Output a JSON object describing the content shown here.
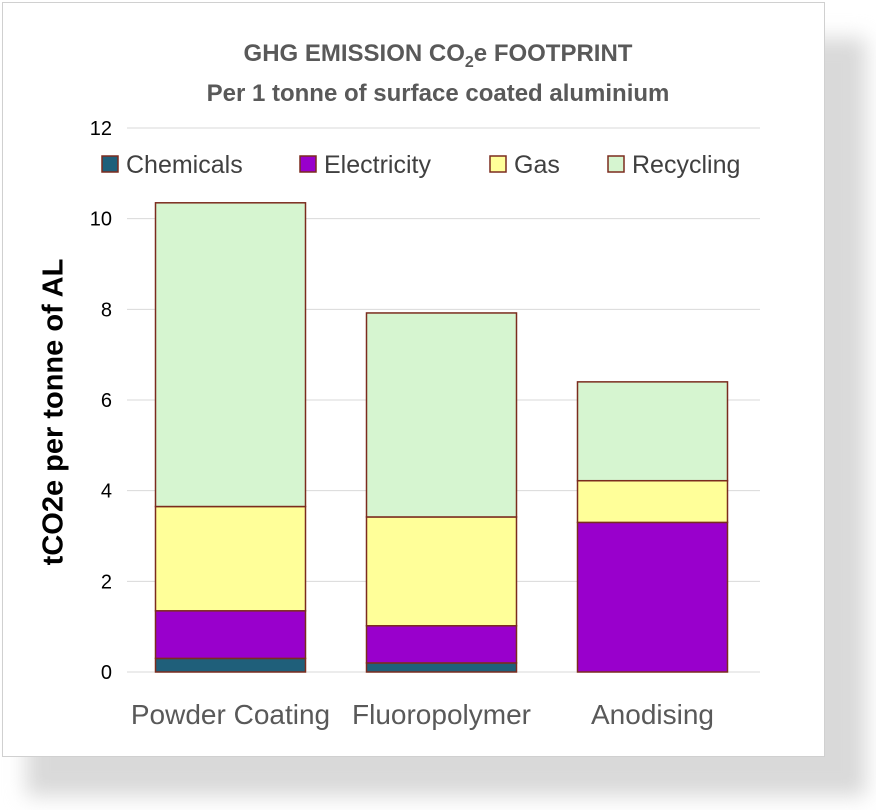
{
  "chart_data": {
    "type": "bar",
    "stacked": true,
    "title": "GHG EMISSION CO",
    "title_subscript": "2",
    "title_suffix": "e FOOTPRINT",
    "subtitle": "Per 1 tonne of surface coated aluminium",
    "ylabel": "tCO2e per tonne of AL",
    "xlabel": "",
    "ylim": [
      0,
      12
    ],
    "yticks": [
      0,
      2,
      4,
      6,
      8,
      10,
      12
    ],
    "grid": true,
    "legend_position": "top",
    "categories": [
      "Powder Coating",
      "Fluoropolymer",
      "Anodising"
    ],
    "series": [
      {
        "name": "Chemicals",
        "color": "#1f5f7a",
        "values": [
          0.3,
          0.2,
          0.0
        ]
      },
      {
        "name": "Electricity",
        "color": "#9900cc",
        "values": [
          1.05,
          0.82,
          3.3
        ]
      },
      {
        "name": "Gas",
        "color": "#ffff99",
        "values": [
          2.3,
          2.4,
          0.92
        ]
      },
      {
        "name": "Recycling",
        "color": "#d6f5d0",
        "values": [
          6.7,
          4.5,
          2.18
        ]
      }
    ],
    "bar_outline_color": "#7b2c1e"
  }
}
